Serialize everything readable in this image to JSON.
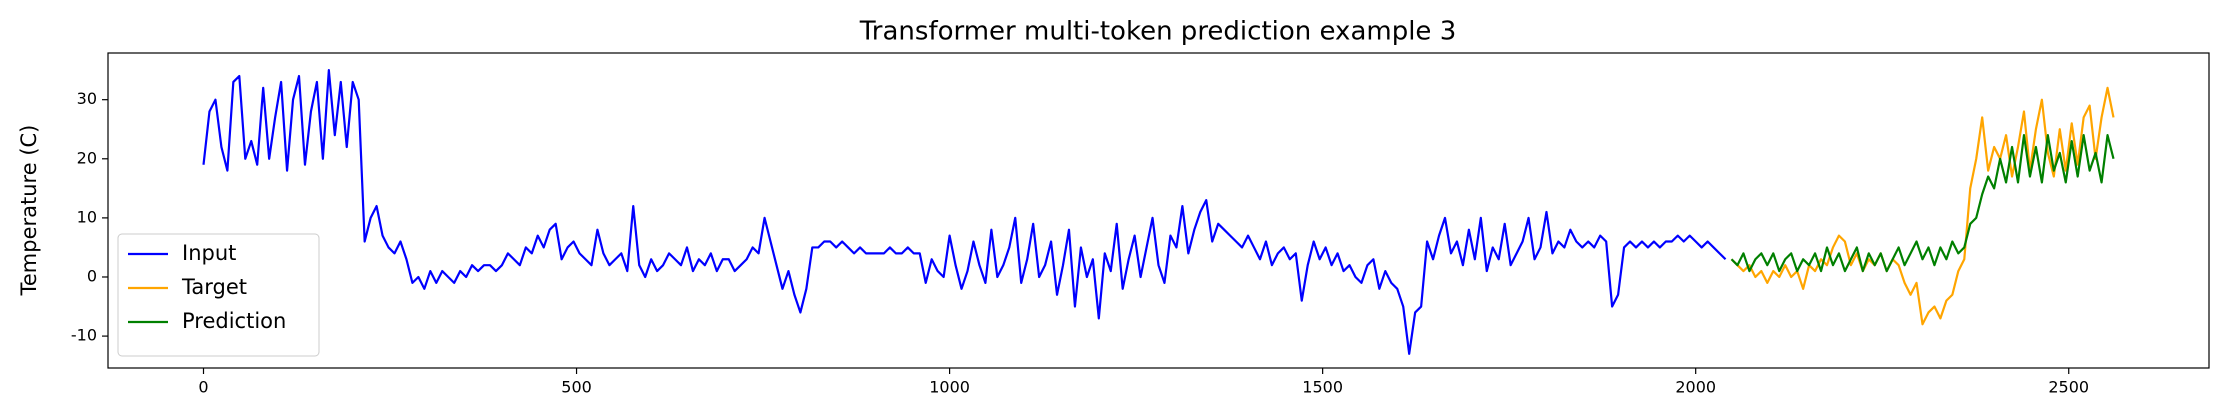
{
  "chart_data": {
    "type": "line",
    "title": "Transformer multi-token prediction example 3",
    "ylabel": "Temperature (C)",
    "xlim": [
      -128,
      2688
    ],
    "ylim": [
      -15.4,
      37.9
    ],
    "xticks": [
      0,
      500,
      1000,
      1500,
      2000,
      2500
    ],
    "yticks": [
      -10,
      0,
      10,
      20,
      30
    ],
    "grid": false,
    "legend": "lower left",
    "series": [
      {
        "name": "Input",
        "color": "#0000ff",
        "x": [
          0,
          8,
          16,
          24,
          32,
          40,
          48,
          56,
          64,
          72,
          80,
          88,
          96,
          104,
          112,
          120,
          128,
          136,
          144,
          152,
          160,
          168,
          176,
          184,
          192,
          200,
          208,
          216,
          224,
          232,
          240,
          248,
          256,
          264,
          272,
          280,
          288,
          296,
          304,
          312,
          320,
          328,
          336,
          344,
          352,
          360,
          368,
          376,
          384,
          392,
          400,
          408,
          416,
          424,
          432,
          440,
          448,
          456,
          464,
          472,
          480,
          488,
          496,
          504,
          512,
          520,
          528,
          536,
          544,
          552,
          560,
          568,
          576,
          584,
          592,
          600,
          608,
          616,
          624,
          632,
          640,
          648,
          656,
          664,
          672,
          680,
          688,
          696,
          704,
          712,
          720,
          728,
          736,
          744,
          752,
          760,
          768,
          776,
          784,
          792,
          800,
          808,
          816,
          824,
          832,
          840,
          848,
          856,
          864,
          872,
          880,
          888,
          896,
          904,
          912,
          920,
          928,
          936,
          944,
          952,
          960,
          968,
          976,
          984,
          992,
          1000,
          1008,
          1016,
          1024,
          1032,
          1040,
          1048,
          1056,
          1064,
          1072,
          1080,
          1088,
          1096,
          1104,
          1112,
          1120,
          1128,
          1136,
          1144,
          1152,
          1160,
          1168,
          1176,
          1184,
          1192,
          1200,
          1208,
          1216,
          1224,
          1232,
          1240,
          1248,
          1256,
          1264,
          1272,
          1280,
          1288,
          1296,
          1304,
          1312,
          1320,
          1328,
          1336,
          1344,
          1352,
          1360,
          1368,
          1376,
          1384,
          1392,
          1400,
          1408,
          1416,
          1424,
          1432,
          1440,
          1448,
          1456,
          1464,
          1472,
          1480,
          1488,
          1496,
          1504,
          1512,
          1520,
          1528,
          1536,
          1544,
          1552,
          1560,
          1568,
          1576,
          1584,
          1592,
          1600,
          1608,
          1616,
          1624,
          1632,
          1640,
          1648,
          1656,
          1664,
          1672,
          1680,
          1688,
          1696,
          1704,
          1712,
          1720,
          1728,
          1736,
          1744,
          1752,
          1760,
          1768,
          1776,
          1784,
          1792,
          1800,
          1808,
          1816,
          1824,
          1832,
          1840,
          1848,
          1856,
          1864,
          1872,
          1880,
          1888,
          1896,
          1904,
          1912,
          1920,
          1928,
          1936,
          1944,
          1952,
          1960,
          1968,
          1976,
          1984,
          1992,
          2000,
          2008,
          2016,
          2024,
          2032,
          2040
        ],
        "values": [
          19,
          28,
          30,
          22,
          18,
          33,
          34,
          20,
          23,
          19,
          32,
          20,
          27,
          33,
          18,
          30,
          34,
          19,
          28,
          33,
          20,
          35,
          24,
          33,
          22,
          33,
          30,
          6,
          10,
          12,
          7,
          5,
          4,
          6,
          3,
          -1,
          0,
          -2,
          1,
          -1,
          1,
          0,
          -1,
          1,
          0,
          2,
          1,
          2,
          2,
          1,
          2,
          4,
          3,
          2,
          5,
          4,
          7,
          5,
          8,
          9,
          3,
          5,
          6,
          4,
          3,
          2,
          8,
          4,
          2,
          3,
          4,
          1,
          12,
          2,
          0,
          3,
          1,
          2,
          4,
          3,
          2,
          5,
          1,
          3,
          2,
          4,
          1,
          3,
          3,
          1,
          2,
          3,
          5,
          4,
          10,
          6,
          2,
          -2,
          1,
          -3,
          -6,
          -2,
          5,
          5,
          6,
          6,
          5,
          6,
          5,
          4,
          5,
          4,
          4,
          4,
          4,
          5,
          4,
          4,
          5,
          4,
          4,
          -1,
          3,
          1,
          0,
          7,
          2,
          -2,
          1,
          6,
          2,
          -1,
          8,
          0,
          2,
          5,
          10,
          -1,
          3,
          9,
          0,
          2,
          6,
          -3,
          2,
          8,
          -5,
          5,
          0,
          3,
          -7,
          4,
          1,
          9,
          -2,
          3,
          7,
          0,
          5,
          10,
          2,
          -1,
          7,
          5,
          12,
          4,
          8,
          11,
          13,
          6,
          9,
          8,
          7,
          6,
          5,
          7,
          5,
          3,
          6,
          2,
          4,
          5,
          3,
          4,
          -4,
          2,
          6,
          3,
          5,
          2,
          4,
          1,
          2,
          0,
          -1,
          2,
          3,
          -2,
          1,
          -1,
          -2,
          -5,
          -13,
          -6,
          -5,
          6,
          3,
          7,
          10,
          4,
          6,
          2,
          8,
          3,
          10,
          1,
          5,
          3,
          9,
          2,
          4,
          6,
          10,
          3,
          5,
          11,
          4,
          6,
          5,
          8,
          6,
          5,
          6,
          5,
          7,
          6,
          -5,
          -3,
          5,
          6,
          5,
          6,
          5,
          6,
          5,
          6,
          6,
          7,
          6,
          7,
          6,
          5,
          6,
          5,
          4,
          3
        ]
      },
      {
        "name": "Target",
        "color": "#ffa500",
        "x": [
          2048,
          2056,
          2064,
          2072,
          2080,
          2088,
          2096,
          2104,
          2112,
          2120,
          2128,
          2136,
          2144,
          2152,
          2160,
          2168,
          2176,
          2184,
          2192,
          2200,
          2208,
          2216,
          2224,
          2232,
          2240,
          2248,
          2256,
          2264,
          2272,
          2280,
          2288,
          2296,
          2304,
          2312,
          2320,
          2328,
          2336,
          2344,
          2352,
          2360,
          2368,
          2376,
          2384,
          2392,
          2400,
          2408,
          2416,
          2424,
          2432,
          2440,
          2448,
          2456,
          2464,
          2472,
          2480,
          2488,
          2496,
          2504,
          2512,
          2520,
          2528,
          2536,
          2544,
          2552,
          2560
        ],
        "values": [
          3,
          2,
          1,
          2,
          0,
          1,
          -1,
          1,
          0,
          2,
          0,
          1,
          -2,
          2,
          1,
          3,
          2,
          5,
          7,
          6,
          2,
          4,
          1,
          3,
          2,
          4,
          1,
          3,
          2,
          -1,
          -3,
          -1,
          -8,
          -6,
          -5,
          -7,
          -4,
          -3,
          1,
          3,
          15,
          20,
          27,
          18,
          22,
          20,
          24,
          17,
          22,
          28,
          18,
          25,
          30,
          21,
          17,
          25,
          18,
          26,
          19,
          27,
          29,
          20,
          27,
          32,
          27
        ]
      },
      {
        "name": "Prediction",
        "color": "#008000",
        "x": [
          2048,
          2056,
          2064,
          2072,
          2080,
          2088,
          2096,
          2104,
          2112,
          2120,
          2128,
          2136,
          2144,
          2152,
          2160,
          2168,
          2176,
          2184,
          2192,
          2200,
          2208,
          2216,
          2224,
          2232,
          2240,
          2248,
          2256,
          2264,
          2272,
          2280,
          2288,
          2296,
          2304,
          2312,
          2320,
          2328,
          2336,
          2344,
          2352,
          2360,
          2368,
          2376,
          2384,
          2392,
          2400,
          2408,
          2416,
          2424,
          2432,
          2440,
          2448,
          2456,
          2464,
          2472,
          2480,
          2488,
          2496,
          2504,
          2512,
          2520,
          2528,
          2536,
          2544,
          2552,
          2560
        ],
        "values": [
          3,
          2,
          4,
          1,
          3,
          4,
          2,
          4,
          1,
          3,
          4,
          1,
          3,
          2,
          4,
          1,
          5,
          2,
          4,
          1,
          3,
          5,
          1,
          4,
          2,
          4,
          1,
          3,
          5,
          2,
          4,
          6,
          3,
          5,
          2,
          5,
          3,
          6,
          4,
          5,
          9,
          10,
          14,
          17,
          15,
          20,
          16,
          22,
          16,
          24,
          17,
          22,
          16,
          24,
          18,
          21,
          16,
          23,
          17,
          24,
          18,
          21,
          16,
          24,
          20
        ]
      }
    ]
  }
}
